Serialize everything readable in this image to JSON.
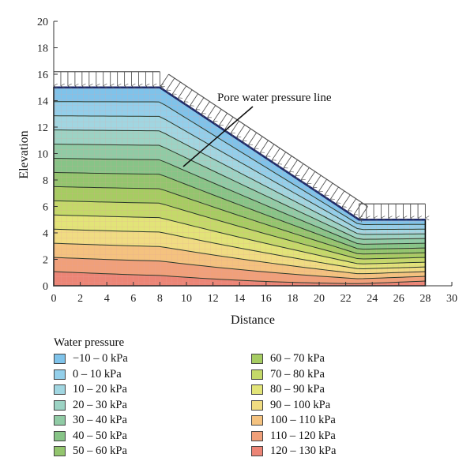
{
  "figure": {
    "x_axis": {
      "label": "Distance",
      "min": 0,
      "max": 30,
      "ticks": [
        0,
        2,
        4,
        6,
        8,
        10,
        12,
        14,
        16,
        18,
        20,
        22,
        24,
        26,
        28,
        30
      ]
    },
    "y_axis": {
      "label": "Elevation",
      "min": 0,
      "max": 20,
      "ticks": [
        0,
        2,
        4,
        6,
        8,
        10,
        12,
        14,
        16,
        18,
        20
      ]
    },
    "annotation": "Pore water pressure line"
  },
  "geometry_data": {
    "slope_profile": [
      [
        0,
        15
      ],
      [
        8,
        15
      ],
      [
        23,
        5
      ],
      [
        28,
        5
      ]
    ],
    "pore_water_line": [
      [
        0,
        15
      ],
      [
        8,
        15
      ],
      [
        23,
        5
      ],
      [
        28,
        5
      ]
    ],
    "loads": [
      {
        "from": [
          0,
          15
        ],
        "to": [
          8,
          15
        ]
      },
      {
        "from": [
          8,
          15
        ],
        "to": [
          23,
          5
        ]
      },
      {
        "from": [
          23,
          5
        ],
        "to": [
          28,
          5
        ]
      }
    ]
  },
  "legend": {
    "title": "Water pressure",
    "items": [
      {
        "label": "−10 – 0 kPa",
        "color": "#7fc3ea"
      },
      {
        "label": "0 – 10 kPa",
        "color": "#93cfea"
      },
      {
        "label": "10 – 20 kPa",
        "color": "#a1d6e1"
      },
      {
        "label": "20 – 30 kPa",
        "color": "#9cd3c4"
      },
      {
        "label": "30 – 40 kPa",
        "color": "#90cba5"
      },
      {
        "label": "40 – 50 kPa",
        "color": "#87c487"
      },
      {
        "label": "50 – 60 kPa",
        "color": "#93c56e"
      },
      {
        "label": "60 – 70 kPa",
        "color": "#a6cc62"
      },
      {
        "label": "70 – 80 kPa",
        "color": "#c4d969"
      },
      {
        "label": "80 – 90 kPa",
        "color": "#e2e478"
      },
      {
        "label": "90 – 100 kPa",
        "color": "#f0dc82"
      },
      {
        "label": "100 – 110 kPa",
        "color": "#f4c27f"
      },
      {
        "label": "110 – 120 kPa",
        "color": "#f0a07a"
      },
      {
        "label": "120 – 130 kPa",
        "color": "#ec8576"
      }
    ]
  }
}
